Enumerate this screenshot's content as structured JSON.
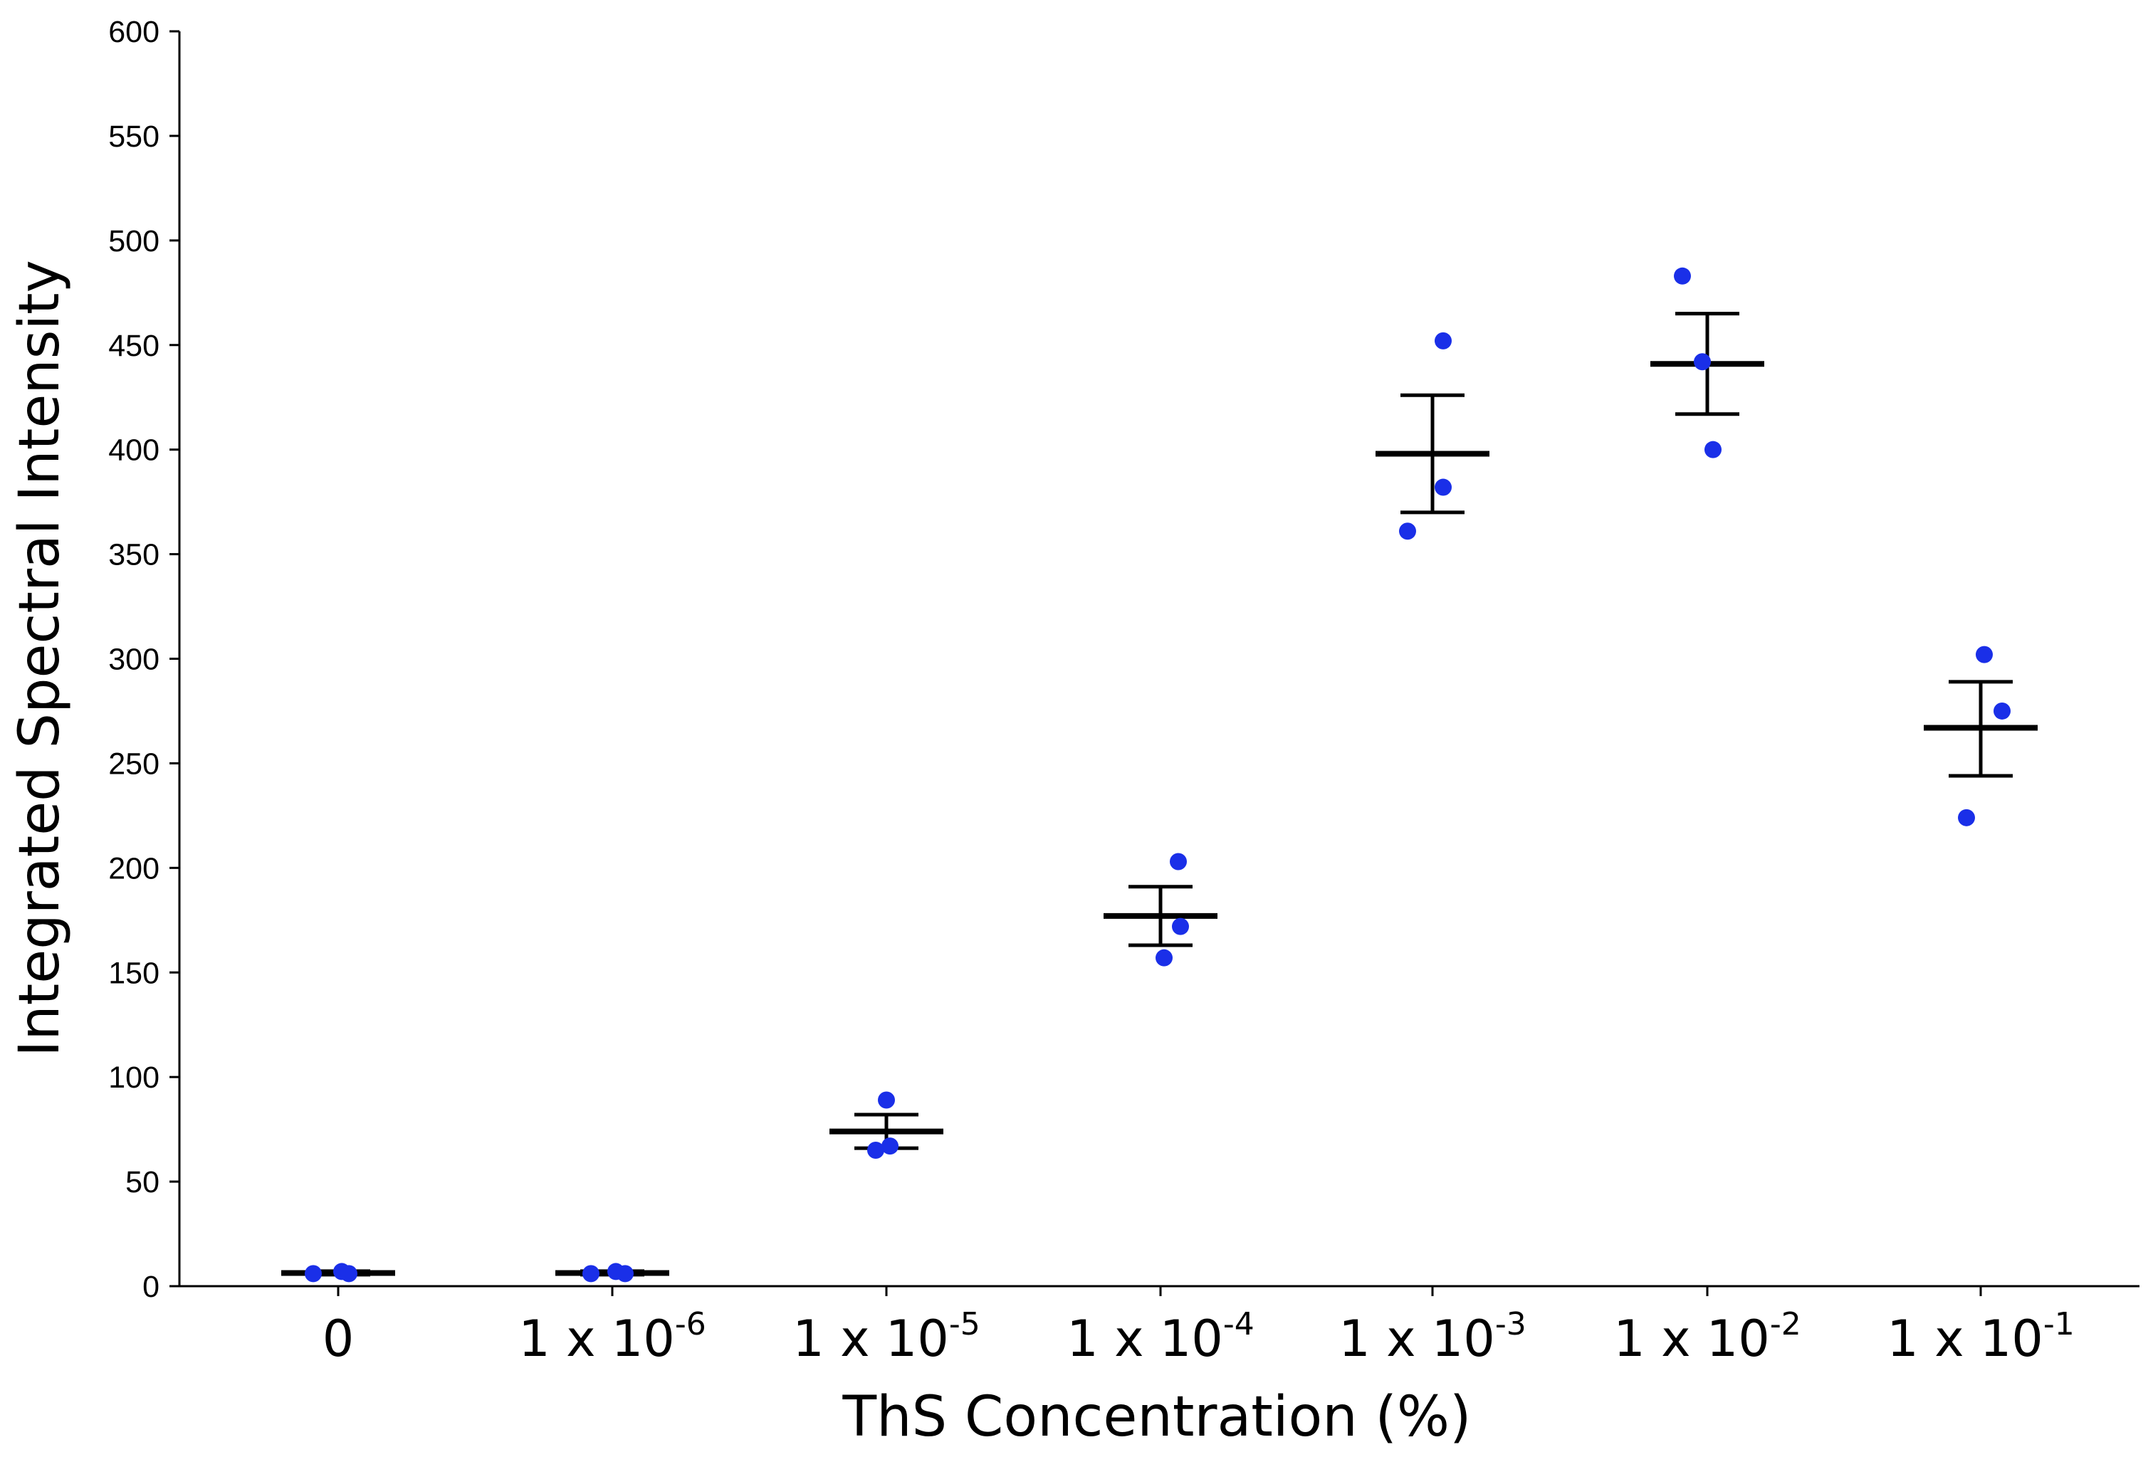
{
  "chart_data": {
    "type": "scatter",
    "title": "",
    "xlabel": "ThS Concentration (%)",
    "ylabel": "Integrated Spectral Intensity",
    "ylim": [
      0,
      600
    ],
    "yticks": [
      0,
      50,
      100,
      150,
      200,
      250,
      300,
      350,
      400,
      450,
      500,
      550,
      600
    ],
    "grid": false,
    "legend": "none",
    "point_color": "#1a2fe8",
    "categories": [
      {
        "base": "0",
        "exp": ""
      },
      {
        "base": "1 x 10",
        "exp": "-6"
      },
      {
        "base": "1 x 10",
        "exp": "-5"
      },
      {
        "base": "1 x 10",
        "exp": "-4"
      },
      {
        "base": "1 x 10",
        "exp": "-3"
      },
      {
        "base": "1 x 10",
        "exp": "-2"
      },
      {
        "base": "1 x 10",
        "exp": "-1"
      }
    ],
    "groups": [
      {
        "points": [
          6,
          7,
          6
        ],
        "mean": 6.3,
        "err_low": 5.5,
        "err_high": 7.2
      },
      {
        "points": [
          6,
          7,
          6
        ],
        "mean": 6.3,
        "err_low": 5.5,
        "err_high": 7.2
      },
      {
        "points": [
          89,
          67,
          65
        ],
        "mean": 74,
        "err_low": 66,
        "err_high": 82
      },
      {
        "points": [
          203,
          172,
          157
        ],
        "mean": 177,
        "err_low": 163,
        "err_high": 191
      },
      {
        "points": [
          452,
          382,
          361
        ],
        "mean": 398,
        "err_low": 370,
        "err_high": 426
      },
      {
        "points": [
          483,
          442,
          400
        ],
        "mean": 441,
        "err_low": 417,
        "err_high": 465
      },
      {
        "points": [
          302,
          275,
          224
        ],
        "mean": 267,
        "err_low": 244,
        "err_high": 289
      }
    ]
  }
}
